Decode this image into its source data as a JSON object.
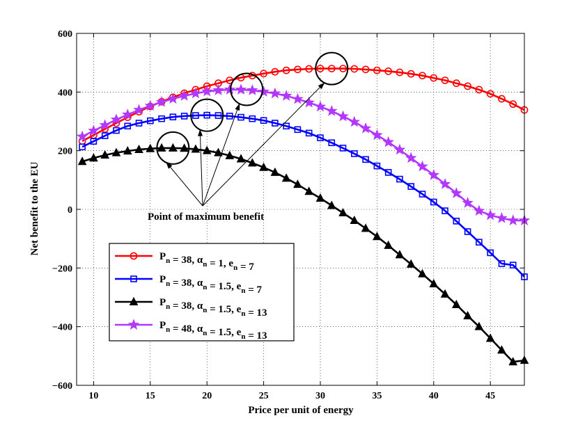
{
  "chart_data": {
    "type": "line",
    "title": "",
    "xlabel": "Price per unit of energy",
    "ylabel": "Net benefit to the EU",
    "xlim": [
      8.5,
      48
    ],
    "ylim": [
      -600,
      600
    ],
    "xticks": [
      10,
      15,
      20,
      25,
      30,
      35,
      40,
      45
    ],
    "yticks": [
      -600,
      -400,
      -200,
      0,
      200,
      400,
      600
    ],
    "xtick_labels": [
      "10",
      "15",
      "20",
      "25",
      "30",
      "35",
      "40",
      "45"
    ],
    "ytick_labels": [
      "−600",
      "−400",
      "−200",
      "0",
      "200",
      "400",
      "600"
    ],
    "grid": true,
    "legend_position": "lower-left",
    "x_start": 9,
    "x_step": 1,
    "series": [
      {
        "name": "Pn = 38, αn = 1, en = 7",
        "legend": {
          "a": "38",
          "b": "1",
          "c": "7"
        },
        "color": "#ff0000",
        "marker": "circle",
        "values": [
          233,
          253,
          274,
          294,
          314,
          333,
          351,
          367,
          382,
          396,
          408,
          420,
          430,
          440,
          449,
          456,
          463,
          469,
          474,
          477,
          479,
          480,
          480,
          480,
          479,
          477,
          474,
          471,
          467,
          462,
          456,
          448,
          440,
          430,
          420,
          408,
          394,
          377,
          359,
          339
        ]
      },
      {
        "name": "Pn = 38, αn = 1.5, en = 7",
        "legend": {
          "a": "38",
          "b": "1.5",
          "c": "7"
        },
        "color": "#0000ff",
        "marker": "square",
        "values": [
          213,
          232,
          251,
          269,
          284,
          294,
          302,
          309,
          315,
          318,
          320,
          321,
          320,
          318,
          314,
          309,
          303,
          294,
          284,
          272,
          260,
          244,
          227,
          209,
          190,
          170,
          148,
          126,
          103,
          78,
          52,
          25,
          -5,
          -40,
          -76,
          -112,
          -148,
          -185,
          -190,
          -230
        ]
      },
      {
        "name": "Pn = 38, αn = 1.5, en = 13",
        "legend": {
          "a": "38",
          "b": "1.5",
          "c": "13"
        },
        "color": "#000000",
        "marker": "triangle",
        "values": [
          163,
          175,
          185,
          193,
          199,
          204,
          207,
          209,
          209,
          208,
          205,
          200,
          193,
          183,
          172,
          158,
          143,
          126,
          106,
          85,
          61,
          38,
          13,
          -12,
          -38,
          -65,
          -93,
          -123,
          -155,
          -187,
          -220,
          -254,
          -289,
          -325,
          -363,
          -400,
          -440,
          -480,
          -520,
          -515
        ]
      },
      {
        "name": "Pn = 48, αn = 1.5, en = 13",
        "legend": {
          "a": "48",
          "b": "1.5",
          "c": "13"
        },
        "color": "#b237ff",
        "marker": "star",
        "values": [
          248,
          268,
          287,
          306,
          323,
          339,
          353,
          366,
          377,
          387,
          395,
          402,
          406,
          408,
          408,
          406,
          401,
          395,
          387,
          376,
          364,
          350,
          335,
          317,
          298,
          276,
          253,
          229,
          203,
          175,
          146,
          117,
          86,
          55,
          22,
          -5,
          -20,
          -30,
          -38,
          -38
        ]
      }
    ],
    "annotations": [
      {
        "text": "Point of maximum benefit"
      }
    ],
    "highlight_points": [
      {
        "series": 2,
        "x": 17,
        "y": 209
      },
      {
        "series": 1,
        "x": 20,
        "y": 321
      },
      {
        "series": 3,
        "x": 23.5,
        "y": 409
      },
      {
        "series": 0,
        "x": 31,
        "y": 480
      }
    ]
  }
}
